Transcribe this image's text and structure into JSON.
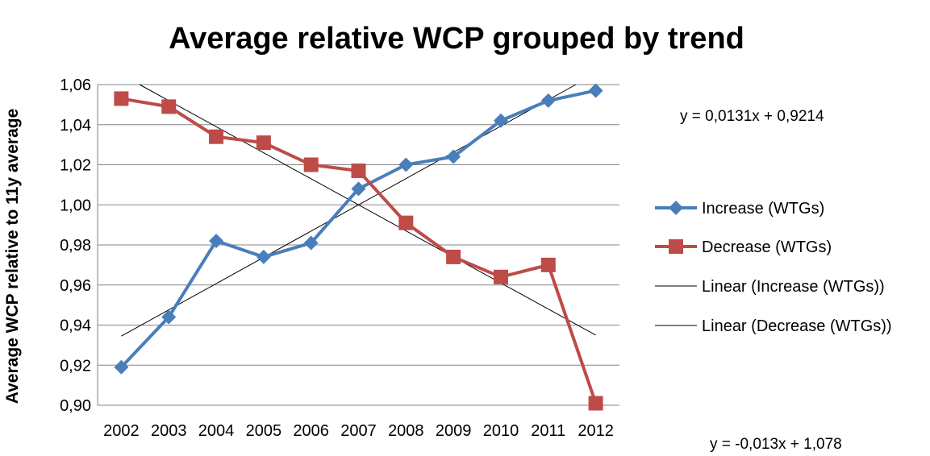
{
  "chart_data": {
    "type": "line",
    "title": "Average relative WCP grouped by trend",
    "xlabel": "",
    "ylabel": "Average WCP relative to 11y average",
    "categories": [
      "2002",
      "2003",
      "2004",
      "2005",
      "2006",
      "2007",
      "2008",
      "2009",
      "2010",
      "2011",
      "2012"
    ],
    "ylim": [
      0.9,
      1.06
    ],
    "yticks": [
      "0,90",
      "0,92",
      "0,94",
      "0,96",
      "0,98",
      "1,00",
      "1,02",
      "1,04",
      "1,06"
    ],
    "grid": true,
    "legend_position": "right",
    "series": [
      {
        "name": "Increase (WTGs)",
        "color": "#4a7ebb",
        "marker": "diamond",
        "values": [
          0.919,
          0.944,
          0.982,
          0.974,
          0.981,
          1.008,
          1.02,
          1.024,
          1.042,
          1.052,
          1.057
        ]
      },
      {
        "name": "Decrease (WTGs)",
        "color": "#be4b48",
        "marker": "square",
        "values": [
          1.053,
          1.049,
          1.034,
          1.031,
          1.02,
          1.017,
          0.991,
          0.974,
          0.964,
          0.97,
          0.901
        ]
      }
    ],
    "trendlines": [
      {
        "name": "Linear (Increase (WTGs))",
        "color": "#000000",
        "slope": 0.0131,
        "intercept": 0.9214,
        "equation": "y = 0,0131x + 0,9214"
      },
      {
        "name": "Linear (Decrease (WTGs))",
        "color": "#000000",
        "slope": -0.013,
        "intercept": 1.078,
        "equation": "y = -0,013x + 1,078"
      }
    ]
  }
}
